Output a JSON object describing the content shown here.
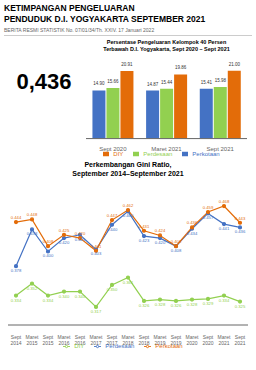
{
  "title": "KETIMPANGAN PENGELUARAN\nPENDUDUK D.I. YOGYAKARTA SEPTEMBER 2021",
  "subtitle": "BERITA RESMI STATISTIK No. 07/01/34/Th. XXIV. 17 Januari 2022",
  "annotations": [
    "0,436"
  ],
  "chart_data": [
    {
      "type": "bar",
      "title": "Persentase Pengeluaran Kelompok 40 Persen\nTerbawah D.I. Yogyakarta, Sept 2020 – Sept 2021",
      "categories": [
        "Sept 2020",
        "Maret 2021",
        "Sept 2021"
      ],
      "series": [
        {
          "name": "Perkotaan",
          "color": "#4472c4",
          "values": [
            14.9,
            14.87,
            15.41
          ],
          "value_labels": [
            "14.90",
            "14.87",
            "15.41"
          ]
        },
        {
          "name": "Perdesaan",
          "color": "#92d050",
          "values": [
            15.66,
            15.44,
            15.98
          ],
          "value_labels": [
            "15.66",
            "15.44",
            "15.98"
          ]
        },
        {
          "name": "DIY",
          "color": "#e36c09",
          "values": [
            20.91,
            19.86,
            21.0
          ],
          "value_labels": [
            "20.91",
            "19.86",
            "21.00"
          ]
        }
      ],
      "ylim": [
        0,
        24
      ],
      "tick_labels": "x",
      "data_labels": true,
      "legend": "bottom"
    },
    {
      "type": "line",
      "title": "Perkembangan Gini Ratio,\nSeptember 2014–September 2021",
      "categories": [
        "Sept\n2014",
        "Maret\n2015",
        "Sept\n2015",
        "Maret\n2016",
        "Sept\n2016",
        "Maret\n2017",
        "Sept\n2017",
        "Maret\n2018",
        "Sept\n2018",
        "Maret\n2019",
        "Sept\n2019",
        "Maret\n2020",
        "Sept\n2020",
        "Maret\n2021",
        "Sept\n2021"
      ],
      "series": [
        {
          "name": "Perdesaan",
          "color": "#4472c4",
          "marker": "o",
          "values": [
            0.378,
            0.433,
            0.4,
            0.42,
            0.425,
            0.403,
            0.44,
            0.46,
            0.423,
            0.42,
            0.408,
            0.434,
            0.457,
            0.441,
            0.436
          ],
          "value_labels": [
            "0.378",
            "0.433",
            "0.400",
            "0.420",
            "0.425",
            "0.403",
            "0.440",
            "0.460",
            "0.423",
            "0.420",
            "0.408",
            "0.434",
            "0.457",
            "0.441",
            "0.436"
          ]
        },
        {
          "name": "Perkotaan",
          "color": "#e36c09",
          "marker": "o",
          "values": [
            0.444,
            0.448,
            0.408,
            0.425,
            0.42,
            0.401,
            0.447,
            0.462,
            0.431,
            0.424,
            0.408,
            0.436,
            0.459,
            0.468,
            0.443
          ],
          "value_labels": [
            "0.444",
            "0.448",
            "0.408",
            "0.425",
            "0.420",
            "0.401",
            "0.447",
            "0.462",
            "0.431",
            "0.424",
            "0.408",
            "0.436",
            "0.459",
            "0.468",
            "0.443"
          ]
        },
        {
          "name": "DIY",
          "color": "#92d050",
          "marker": "o",
          "values": [
            0.334,
            0.352,
            0.334,
            0.34,
            0.34,
            0.317,
            0.35,
            0.361,
            0.326,
            0.328,
            0.326,
            0.328,
            0.329,
            0.334,
            0.325
          ],
          "value_labels": [
            "0.334",
            "0.352",
            "0.334",
            "0.340",
            "0.340",
            "0.317",
            "0.350",
            "0.361",
            "0.326",
            "0.328",
            "0.326",
            "0.328",
            "0.329",
            "0.334",
            "0.325"
          ]
        }
      ],
      "ylim": [
        0.29,
        0.495
      ],
      "tick_labels": "x",
      "data_labels": true,
      "legend": "bottom"
    }
  ]
}
